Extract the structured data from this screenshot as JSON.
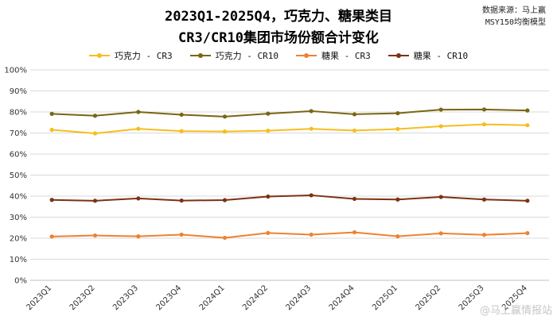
{
  "header": {
    "title_line1": "2023Q1-2025Q4，巧克力、糖果类目",
    "title_line2": "CR3/CR10集团市场份额合计变化",
    "source_line1": "数据来源：马上赢",
    "source_line2": "MSY150均衡模型"
  },
  "watermark": "@马上赢情报站",
  "colors": {
    "choc_cr3": "#F5BE1E",
    "choc_cr10": "#7A6512",
    "candy_cr3": "#ED8231",
    "candy_cr10": "#7B3214",
    "grid": "#D9D9D9"
  },
  "chart_data": {
    "type": "line",
    "title": "2023Q1-2025Q4，巧克力、糖果类目 CR3/CR10集团市场份额合计变化",
    "xlabel": "",
    "ylabel": "",
    "ylim": [
      0,
      100
    ],
    "yticks": [
      "0%",
      "10%",
      "20%",
      "30%",
      "40%",
      "50%",
      "60%",
      "70%",
      "80%",
      "90%",
      "100%"
    ],
    "categories": [
      "2023Q1",
      "2023Q2",
      "2023Q3",
      "2023Q4",
      "2024Q1",
      "2024Q2",
      "2024Q3",
      "2024Q4",
      "2025Q1",
      "2025Q2",
      "2025Q3",
      "2025Q4"
    ],
    "legend_position": "top-center",
    "grid": true,
    "series": [
      {
        "name": "巧克力 - CR3",
        "color_key": "choc_cr3",
        "values": [
          71.5,
          69.8,
          72.0,
          70.9,
          70.7,
          71.1,
          72.0,
          71.2,
          71.9,
          73.2,
          74.1,
          73.7
        ]
      },
      {
        "name": "巧克力 - CR10",
        "color_key": "choc_cr10",
        "values": [
          79.1,
          78.2,
          80.0,
          78.7,
          77.8,
          79.2,
          80.4,
          78.9,
          79.4,
          81.1,
          81.2,
          80.7
        ]
      },
      {
        "name": "糖果 - CR3",
        "color_key": "candy_cr3",
        "values": [
          20.8,
          21.3,
          20.9,
          21.7,
          20.2,
          22.5,
          21.7,
          22.8,
          20.9,
          22.3,
          21.6,
          22.4
        ]
      },
      {
        "name": "糖果 - CR10",
        "color_key": "candy_cr10",
        "values": [
          38.2,
          37.8,
          38.9,
          37.9,
          38.1,
          39.8,
          40.4,
          38.7,
          38.4,
          39.6,
          38.4,
          37.8
        ]
      }
    ]
  }
}
